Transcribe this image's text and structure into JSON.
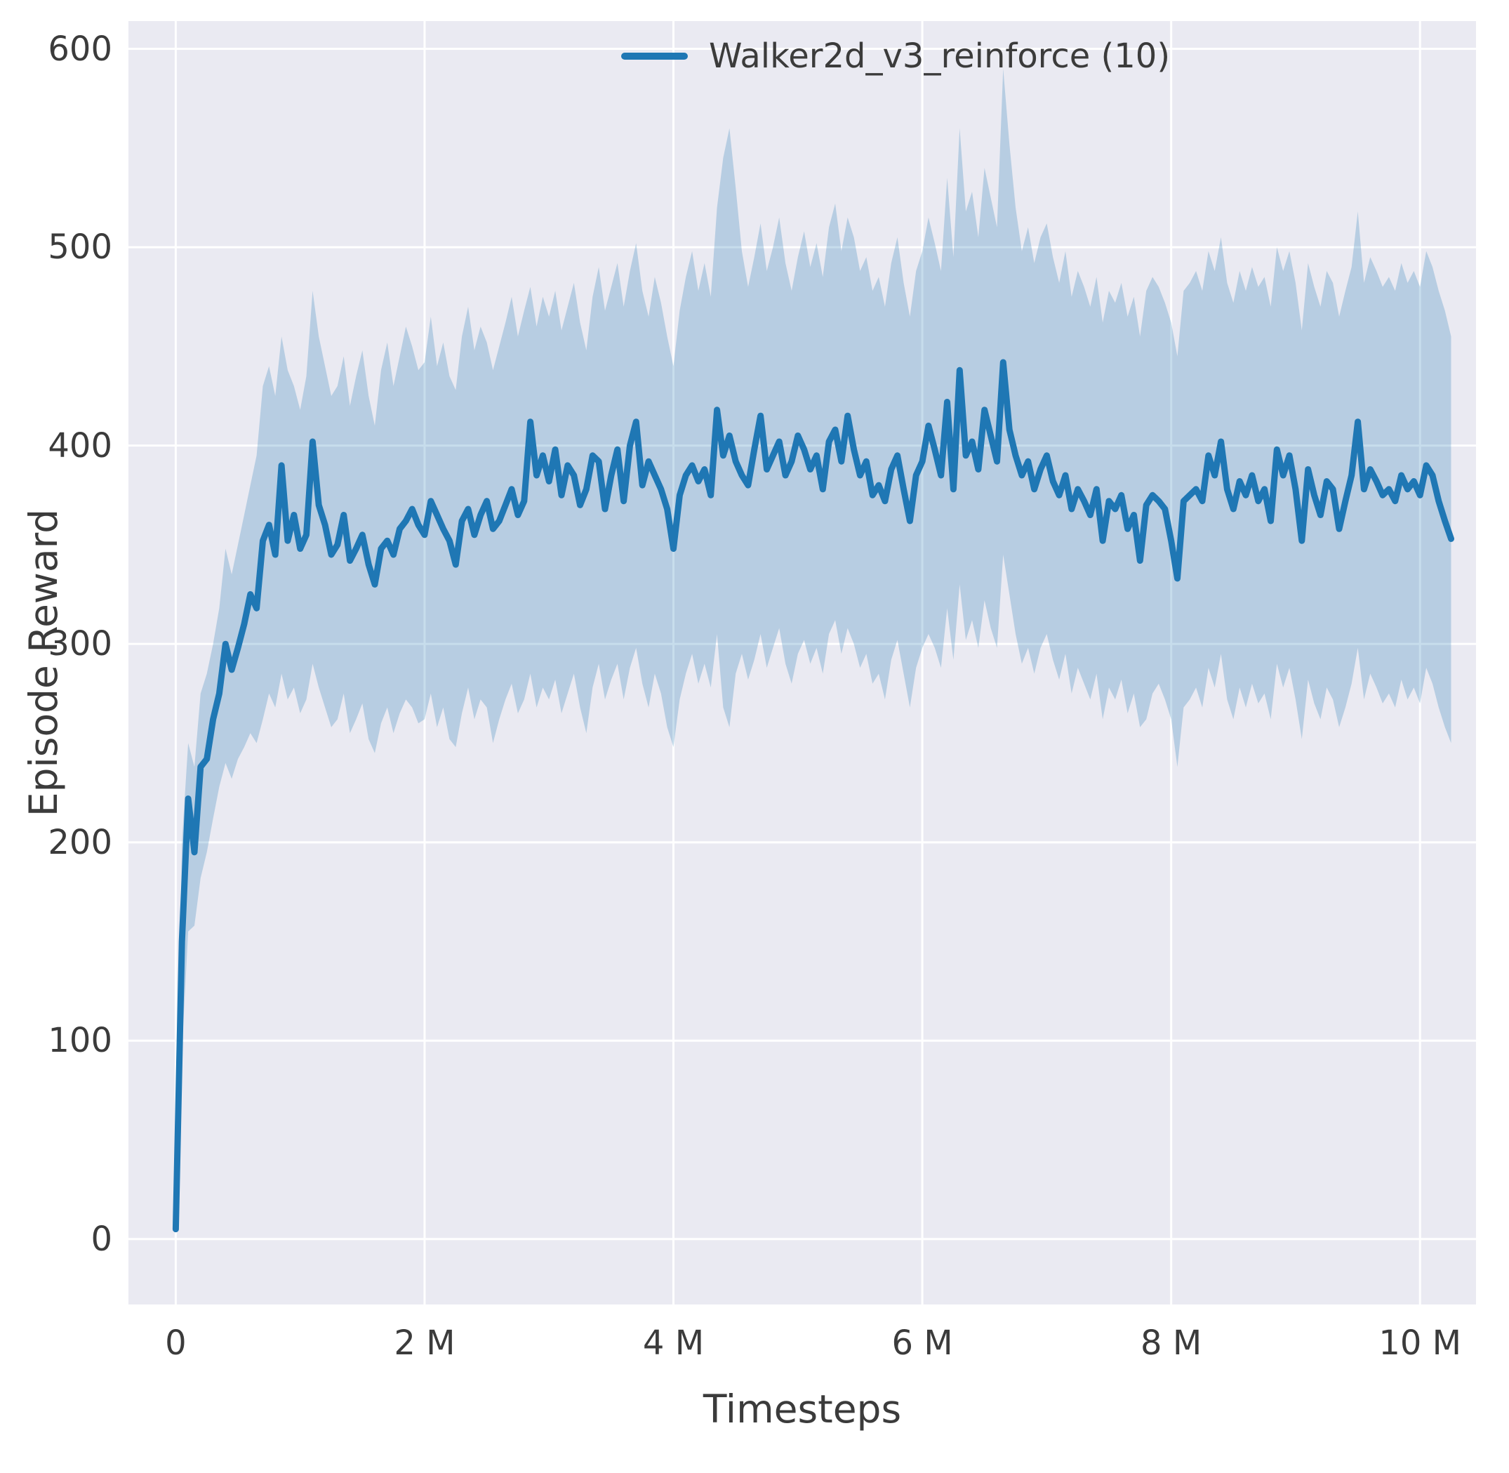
{
  "chart_data": {
    "type": "line",
    "title": "",
    "xlabel": "Timesteps",
    "ylabel": "Episode Reward",
    "xlim": [
      -0.38,
      10.45
    ],
    "ylim": [
      -33,
      614
    ],
    "grid": true,
    "plot_background": "#eaeaf2",
    "figure_background": "#ffffff",
    "x_unit": "millions of timesteps",
    "x_ticks": {
      "values": [
        0,
        2,
        4,
        6,
        8,
        10
      ],
      "labels": [
        "0",
        "2 M",
        "4 M",
        "6 M",
        "8 M",
        "10 M"
      ]
    },
    "y_ticks": {
      "values": [
        0,
        100,
        200,
        300,
        400,
        500,
        600
      ],
      "labels": [
        "0",
        "100",
        "200",
        "300",
        "400",
        "500",
        "600"
      ]
    },
    "legend": {
      "position": "upper center-right",
      "entries": [
        "Walker2d_v3_reinforce (10)"
      ]
    },
    "series": [
      {
        "name": "Walker2d_v3_reinforce (10)",
        "color": "#1f77b4",
        "band_opacity": 0.25,
        "x_start": 0,
        "x_step": 0.05,
        "mean": [
          5,
          150,
          222,
          195,
          238,
          242,
          262,
          275,
          300,
          287,
          298,
          310,
          325,
          318,
          352,
          360,
          345,
          390,
          352,
          365,
          348,
          355,
          402,
          370,
          360,
          345,
          350,
          365,
          342,
          348,
          355,
          340,
          330,
          348,
          352,
          345,
          358,
          362,
          368,
          360,
          355,
          372,
          365,
          358,
          352,
          340,
          362,
          368,
          355,
          365,
          372,
          358,
          362,
          370,
          378,
          365,
          372,
          412,
          385,
          395,
          382,
          398,
          375,
          390,
          385,
          370,
          378,
          395,
          392,
          368,
          385,
          398,
          372,
          400,
          412,
          380,
          392,
          385,
          378,
          368,
          348,
          375,
          385,
          390,
          382,
          388,
          375,
          418,
          395,
          405,
          392,
          385,
          380,
          398,
          415,
          388,
          395,
          402,
          385,
          392,
          405,
          398,
          388,
          395,
          378,
          402,
          408,
          392,
          415,
          398,
          385,
          392,
          375,
          380,
          372,
          388,
          395,
          378,
          362,
          385,
          392,
          410,
          398,
          385,
          422,
          378,
          438,
          395,
          402,
          388,
          418,
          405,
          392,
          442,
          408,
          395,
          385,
          392,
          378,
          388,
          395,
          382,
          375,
          385,
          368,
          378,
          372,
          365,
          378,
          352,
          372,
          368,
          375,
          358,
          365,
          342,
          370,
          375,
          372,
          368,
          352,
          333,
          372,
          375,
          378,
          372,
          395,
          385,
          402,
          378,
          368,
          382,
          375,
          385,
          372,
          378,
          362,
          398,
          385,
          395,
          378,
          352,
          388,
          375,
          365,
          382,
          378,
          358,
          372,
          385,
          412,
          378,
          388,
          382,
          375,
          378,
          372,
          385,
          378,
          382,
          375,
          390,
          385,
          372,
          362,
          353
        ],
        "band_lower": [
          4,
          95,
          155,
          158,
          182,
          195,
          212,
          228,
          240,
          232,
          242,
          248,
          255,
          250,
          262,
          275,
          268,
          285,
          272,
          278,
          265,
          272,
          290,
          278,
          268,
          258,
          262,
          275,
          255,
          262,
          270,
          252,
          245,
          260,
          268,
          255,
          265,
          272,
          268,
          260,
          262,
          275,
          258,
          268,
          252,
          248,
          265,
          278,
          262,
          272,
          268,
          250,
          262,
          272,
          280,
          265,
          272,
          285,
          268,
          278,
          272,
          282,
          265,
          275,
          285,
          268,
          255,
          278,
          290,
          272,
          282,
          290,
          272,
          288,
          298,
          280,
          268,
          285,
          275,
          258,
          248,
          272,
          285,
          295,
          280,
          290,
          278,
          305,
          268,
          258,
          285,
          295,
          282,
          292,
          305,
          288,
          298,
          308,
          290,
          280,
          295,
          302,
          290,
          298,
          285,
          305,
          312,
          295,
          308,
          300,
          288,
          295,
          280,
          285,
          272,
          292,
          302,
          285,
          268,
          288,
          298,
          305,
          298,
          288,
          318,
          292,
          330,
          302,
          312,
          298,
          322,
          308,
          298,
          345,
          325,
          305,
          290,
          298,
          285,
          298,
          305,
          292,
          282,
          295,
          275,
          288,
          280,
          272,
          285,
          262,
          278,
          272,
          282,
          265,
          275,
          258,
          262,
          275,
          280,
          272,
          262,
          238,
          268,
          272,
          278,
          268,
          288,
          278,
          295,
          272,
          262,
          278,
          268,
          280,
          270,
          275,
          262,
          290,
          278,
          288,
          272,
          252,
          282,
          270,
          262,
          278,
          272,
          258,
          268,
          280,
          298,
          272,
          285,
          278,
          270,
          275,
          268,
          282,
          272,
          278,
          270,
          288,
          280,
          268,
          258,
          250
        ],
        "band_upper": [
          6,
          200,
          250,
          238,
          275,
          285,
          300,
          318,
          348,
          335,
          350,
          365,
          380,
          395,
          430,
          440,
          425,
          455,
          438,
          430,
          418,
          435,
          478,
          455,
          440,
          425,
          430,
          445,
          420,
          435,
          448,
          425,
          410,
          438,
          452,
          430,
          445,
          460,
          450,
          438,
          442,
          465,
          440,
          452,
          435,
          428,
          455,
          470,
          448,
          460,
          452,
          438,
          450,
          462,
          475,
          455,
          468,
          480,
          460,
          475,
          465,
          478,
          458,
          470,
          482,
          462,
          448,
          475,
          490,
          468,
          480,
          492,
          470,
          488,
          502,
          478,
          465,
          485,
          472,
          455,
          440,
          468,
          485,
          498,
          478,
          492,
          475,
          520,
          545,
          560,
          530,
          498,
          480,
          495,
          512,
          488,
          500,
          515,
          492,
          478,
          495,
          508,
          490,
          502,
          485,
          510,
          522,
          498,
          515,
          505,
          488,
          495,
          478,
          485,
          470,
          492,
          505,
          482,
          465,
          488,
          498,
          515,
          502,
          488,
          535,
          495,
          560,
          518,
          528,
          505,
          540,
          525,
          510,
          590,
          552,
          520,
          498,
          510,
          492,
          505,
          512,
          495,
          482,
          498,
          475,
          488,
          480,
          470,
          485,
          462,
          478,
          472,
          482,
          465,
          475,
          455,
          478,
          485,
          480,
          472,
          462,
          445,
          478,
          482,
          488,
          478,
          498,
          488,
          505,
          482,
          472,
          488,
          478,
          490,
          480,
          485,
          470,
          500,
          488,
          498,
          482,
          458,
          492,
          480,
          470,
          488,
          482,
          465,
          478,
          490,
          518,
          482,
          495,
          488,
          480,
          485,
          478,
          492,
          482,
          488,
          480,
          498,
          490,
          478,
          468,
          455
        ]
      }
    ]
  }
}
